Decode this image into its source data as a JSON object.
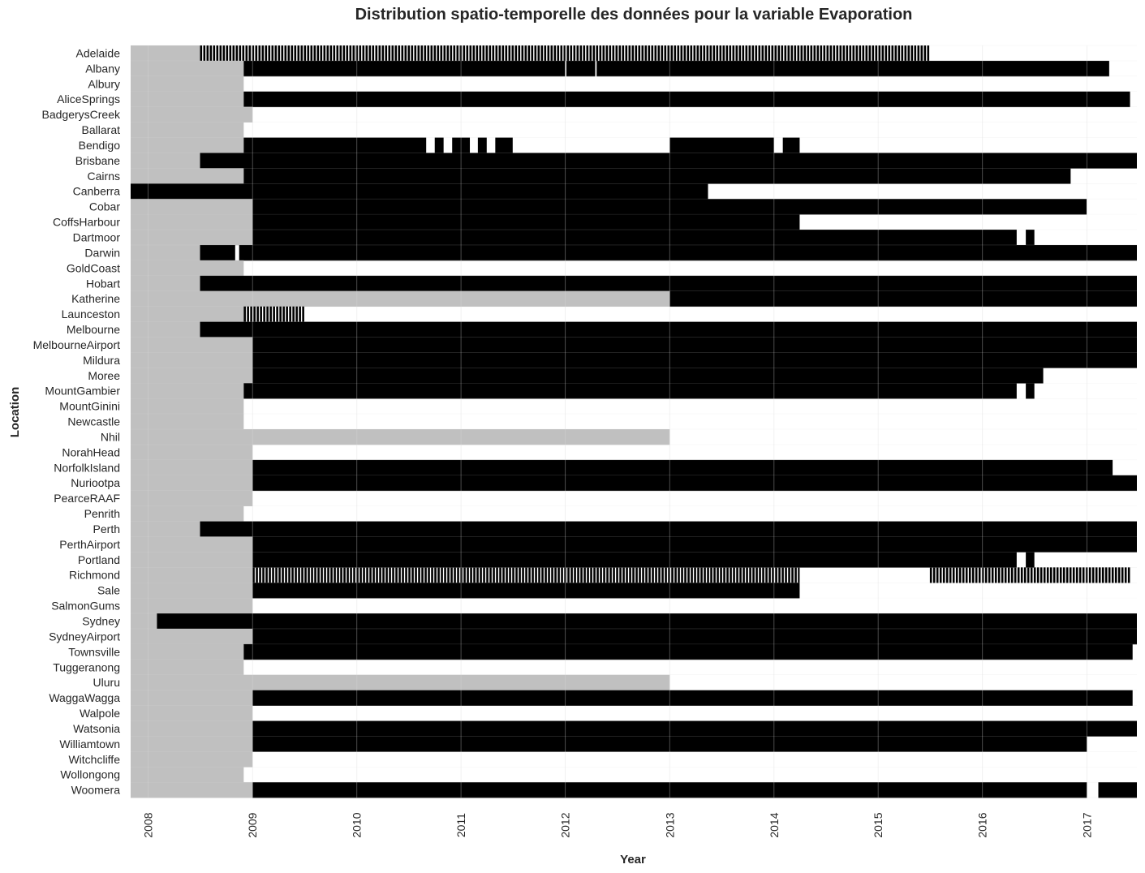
{
  "chart_data": {
    "type": "heatmap",
    "title": "Distribution spatio-temporelle des données pour la variable Evaporation",
    "xlabel": "Year",
    "ylabel": "Location",
    "x_ticks": [
      "2008",
      "2009",
      "2010",
      "2011",
      "2012",
      "2013",
      "2014",
      "2015",
      "2016",
      "2017"
    ],
    "xlim": [
      "2007-11-01",
      "2017-06-25"
    ],
    "legend": "none",
    "colors": {
      "present": "#000000",
      "missing": "#ffffff",
      "no_record": "#c0c0c0",
      "grid": "#d8d8d8"
    },
    "locations": [
      {
        "name": "Adelaide",
        "record_start": "2008-07-01",
        "data": [
          [
            "2008-07-01",
            "2015-06-30"
          ]
        ],
        "style": "striped"
      },
      {
        "name": "Albany",
        "record_start": "2008-12-01",
        "data": [
          [
            "2008-12-01",
            "2012-01-01"
          ],
          [
            "2012-01-05",
            "2012-04-15"
          ],
          [
            "2012-04-20",
            "2017-03-20"
          ]
        ]
      },
      {
        "name": "Albury",
        "record_start": "2008-12-01",
        "data": []
      },
      {
        "name": "AliceSprings",
        "record_start": "2008-12-01",
        "data": [
          [
            "2008-12-01",
            "2017-06-01"
          ]
        ]
      },
      {
        "name": "BadgerysCreek",
        "record_start": "2009-01-01",
        "data": []
      },
      {
        "name": "Ballarat",
        "record_start": "2008-12-01",
        "data": []
      },
      {
        "name": "Bendigo",
        "record_start": "2008-12-01",
        "data": [
          [
            "2008-12-01",
            "2010-09-01"
          ],
          [
            "2010-10-01",
            "2010-11-01"
          ],
          [
            "2010-12-01",
            "2011-02-01"
          ],
          [
            "2011-03-01",
            "2011-04-01"
          ],
          [
            "2011-05-01",
            "2011-07-01"
          ],
          [
            "2013-01-01",
            "2014-01-01"
          ],
          [
            "2014-02-01",
            "2014-04-01"
          ]
        ]
      },
      {
        "name": "Brisbane",
        "record_start": "2008-07-01",
        "data": [
          [
            "2008-07-01",
            "2017-06-25"
          ]
        ]
      },
      {
        "name": "Cairns",
        "record_start": "2008-12-01",
        "data": [
          [
            "2008-12-01",
            "2016-11-05"
          ]
        ]
      },
      {
        "name": "Canberra",
        "record_start": "2007-11-01",
        "data": [
          [
            "2007-11-01",
            "2013-05-15"
          ]
        ]
      },
      {
        "name": "Cobar",
        "record_start": "2009-01-01",
        "data": [
          [
            "2009-01-01",
            "2016-12-31"
          ]
        ]
      },
      {
        "name": "CoffsHarbour",
        "record_start": "2009-01-01",
        "data": [
          [
            "2009-01-01",
            "2014-04-01"
          ]
        ]
      },
      {
        "name": "Dartmoor",
        "record_start": "2009-01-01",
        "data": [
          [
            "2009-01-01",
            "2016-04-30"
          ],
          [
            "2016-06-01",
            "2016-07-01"
          ]
        ]
      },
      {
        "name": "Darwin",
        "record_start": "2008-07-01",
        "data": [
          [
            "2008-07-01",
            "2008-11-01"
          ],
          [
            "2008-11-15",
            "2017-06-25"
          ]
        ]
      },
      {
        "name": "GoldCoast",
        "record_start": "2008-12-01",
        "data": []
      },
      {
        "name": "Hobart",
        "record_start": "2008-07-01",
        "data": [
          [
            "2008-07-01",
            "2017-06-25"
          ]
        ]
      },
      {
        "name": "Katherine",
        "record_start": "2013-01-01",
        "data": [
          [
            "2013-01-01",
            "2017-06-25"
          ]
        ]
      },
      {
        "name": "Launceston",
        "record_start": "2008-12-01",
        "data": [
          [
            "2008-12-01",
            "2009-07-01"
          ]
        ],
        "style": "striped"
      },
      {
        "name": "Melbourne",
        "record_start": "2008-07-01",
        "data": [
          [
            "2008-07-01",
            "2017-06-25"
          ]
        ]
      },
      {
        "name": "MelbourneAirport",
        "record_start": "2009-01-01",
        "data": [
          [
            "2009-01-01",
            "2017-06-25"
          ]
        ]
      },
      {
        "name": "Mildura",
        "record_start": "2009-01-01",
        "data": [
          [
            "2009-01-01",
            "2017-06-25"
          ]
        ]
      },
      {
        "name": "Moree",
        "record_start": "2009-01-01",
        "data": [
          [
            "2009-01-01",
            "2016-08-01"
          ]
        ]
      },
      {
        "name": "MountGambier",
        "record_start": "2008-12-01",
        "data": [
          [
            "2008-12-01",
            "2016-04-30"
          ],
          [
            "2016-06-01",
            "2016-07-01"
          ]
        ]
      },
      {
        "name": "MountGinini",
        "record_start": "2008-12-01",
        "data": []
      },
      {
        "name": "Newcastle",
        "record_start": "2008-12-01",
        "data": []
      },
      {
        "name": "Nhil",
        "record_start": "2013-01-01",
        "data": []
      },
      {
        "name": "NorahHead",
        "record_start": "2009-01-01",
        "data": []
      },
      {
        "name": "NorfolkIsland",
        "record_start": "2009-01-01",
        "data": [
          [
            "2009-01-01",
            "2017-04-01"
          ]
        ]
      },
      {
        "name": "Nuriootpa",
        "record_start": "2009-01-01",
        "data": [
          [
            "2009-01-01",
            "2017-06-25"
          ]
        ]
      },
      {
        "name": "PearceRAAF",
        "record_start": "2009-01-01",
        "data": []
      },
      {
        "name": "Penrith",
        "record_start": "2008-12-01",
        "data": []
      },
      {
        "name": "Perth",
        "record_start": "2008-07-01",
        "data": [
          [
            "2008-07-01",
            "2017-06-25"
          ]
        ]
      },
      {
        "name": "PerthAirport",
        "record_start": "2009-01-01",
        "data": [
          [
            "2009-01-01",
            "2017-06-25"
          ]
        ]
      },
      {
        "name": "Portland",
        "record_start": "2009-01-01",
        "data": [
          [
            "2009-01-01",
            "2016-04-30"
          ],
          [
            "2016-06-01",
            "2016-07-01"
          ]
        ]
      },
      {
        "name": "Richmond",
        "record_start": "2009-01-01",
        "data": [
          [
            "2009-01-01",
            "2014-04-01"
          ],
          [
            "2015-07-01",
            "2017-06-01"
          ]
        ],
        "style": "striped"
      },
      {
        "name": "Sale",
        "record_start": "2009-01-01",
        "data": [
          [
            "2009-01-01",
            "2014-04-01"
          ]
        ]
      },
      {
        "name": "SalmonGums",
        "record_start": "2009-01-01",
        "data": []
      },
      {
        "name": "Sydney",
        "record_start": "2008-02-01",
        "data": [
          [
            "2008-02-01",
            "2017-06-25"
          ]
        ]
      },
      {
        "name": "SydneyAirport",
        "record_start": "2009-01-01",
        "data": [
          [
            "2009-01-01",
            "2017-06-25"
          ]
        ]
      },
      {
        "name": "Townsville",
        "record_start": "2008-12-01",
        "data": [
          [
            "2008-12-01",
            "2017-06-10"
          ]
        ]
      },
      {
        "name": "Tuggeranong",
        "record_start": "2008-12-01",
        "data": []
      },
      {
        "name": "Uluru",
        "record_start": "2013-01-01",
        "data": []
      },
      {
        "name": "WaggaWagga",
        "record_start": "2009-01-01",
        "data": [
          [
            "2009-01-01",
            "2017-06-10"
          ]
        ]
      },
      {
        "name": "Walpole",
        "record_start": "2009-01-01",
        "data": []
      },
      {
        "name": "Watsonia",
        "record_start": "2009-01-01",
        "data": [
          [
            "2009-01-01",
            "2017-06-25"
          ]
        ]
      },
      {
        "name": "Williamtown",
        "record_start": "2009-01-01",
        "data": [
          [
            "2009-01-01",
            "2017-01-01"
          ]
        ]
      },
      {
        "name": "Witchcliffe",
        "record_start": "2009-01-01",
        "data": []
      },
      {
        "name": "Wollongong",
        "record_start": "2008-12-01",
        "data": []
      },
      {
        "name": "Woomera",
        "record_start": "2009-01-01",
        "data": [
          [
            "2009-01-01",
            "2017-01-01"
          ],
          [
            "2017-02-10",
            "2017-06-25"
          ]
        ]
      }
    ]
  }
}
